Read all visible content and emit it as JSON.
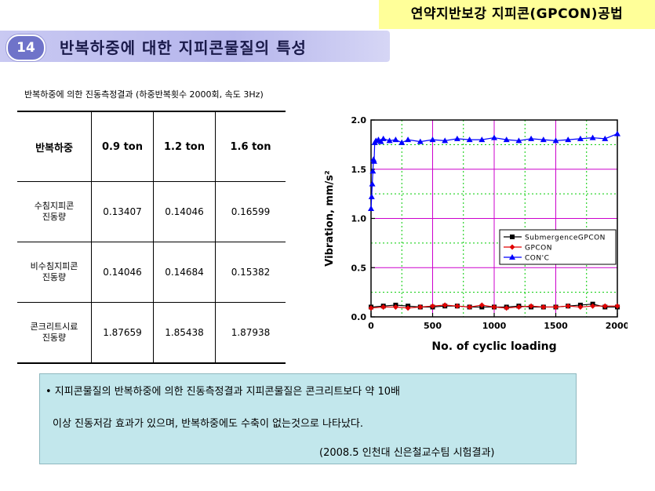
{
  "header": {
    "banner": "연약지반보강 지피콘(GPCON)공법"
  },
  "section": {
    "number": "14",
    "title": "반복하중에 대한 지피콘물질의 특성"
  },
  "caption": "반복하중에 의한 진동측정결과 (하중반복횟수 2000회, 속도 3Hz)",
  "table": {
    "headers": [
      "반복하중",
      "0.9 ton",
      "1.2 ton",
      "1.6 ton"
    ],
    "rows": [
      {
        "label1": "수침지피콘",
        "label2": "진동량",
        "values": [
          "0.13407",
          "0.14046",
          "0.16599"
        ]
      },
      {
        "label1": "비수침지피콘",
        "label2": "진동량",
        "values": [
          "0.14046",
          "0.14684",
          "0.15382"
        ]
      },
      {
        "label1": "콘크리트시료",
        "label2": "진동량",
        "values": [
          "1.87659",
          "1.85438",
          "1.87938"
        ]
      }
    ]
  },
  "chart_data": {
    "type": "line",
    "xlabel": "No. of cyclic loading",
    "ylabel": "Vibration, mm/s²",
    "xlim": [
      0,
      2000
    ],
    "ylim": [
      0,
      2.0
    ],
    "xticks": [
      "0",
      "500",
      "1000",
      "1500",
      "2000"
    ],
    "yticks": [
      "0.0",
      "0.5",
      "1.0",
      "1.5",
      "2.0"
    ],
    "grid": true,
    "legend_position": "right",
    "series": [
      {
        "name": "SubmergenceGPCON",
        "color": "#000000",
        "marker": "square",
        "x": [
          0,
          100,
          200,
          300,
          400,
          500,
          600,
          700,
          800,
          900,
          1000,
          1100,
          1200,
          1300,
          1400,
          1500,
          1600,
          1700,
          1800,
          1900,
          2000
        ],
        "values": [
          0.1,
          0.11,
          0.12,
          0.11,
          0.1,
          0.1,
          0.11,
          0.11,
          0.1,
          0.1,
          0.1,
          0.1,
          0.11,
          0.1,
          0.1,
          0.1,
          0.11,
          0.12,
          0.13,
          0.1,
          0.1
        ]
      },
      {
        "name": "GPCON",
        "color": "#e00000",
        "marker": "diamond",
        "x": [
          0,
          100,
          200,
          300,
          400,
          500,
          600,
          700,
          800,
          900,
          1000,
          1100,
          1200,
          1300,
          1400,
          1500,
          1600,
          1700,
          1800,
          1900,
          2000
        ],
        "values": [
          0.09,
          0.1,
          0.1,
          0.09,
          0.1,
          0.11,
          0.12,
          0.11,
          0.1,
          0.12,
          0.1,
          0.09,
          0.1,
          0.11,
          0.1,
          0.1,
          0.11,
          0.1,
          0.11,
          0.11,
          0.11
        ]
      },
      {
        "name": "CON'C",
        "color": "#0000ff",
        "marker": "triangle",
        "x": [
          0,
          5,
          10,
          15,
          20,
          25,
          30,
          40,
          60,
          80,
          100,
          150,
          200,
          250,
          300,
          400,
          500,
          600,
          700,
          800,
          900,
          1000,
          1100,
          1200,
          1300,
          1400,
          1500,
          1600,
          1700,
          1800,
          1900,
          2000
        ],
        "values": [
          1.1,
          1.22,
          1.35,
          1.48,
          1.6,
          1.58,
          1.77,
          1.79,
          1.8,
          1.78,
          1.81,
          1.79,
          1.8,
          1.77,
          1.8,
          1.78,
          1.8,
          1.79,
          1.81,
          1.8,
          1.8,
          1.82,
          1.8,
          1.79,
          1.81,
          1.8,
          1.79,
          1.8,
          1.81,
          1.82,
          1.81,
          1.86
        ]
      }
    ]
  },
  "note": {
    "line1": "• 지피콘물질의 반복하중에 의한 진동측정결과 지피콘물질은 콘크리트보다 약 10배",
    "line2": "이상 진동저감 효과가 있으며, 반복하중에도 수축이 없는것으로 나타났다.",
    "line3": "(2008.5 인천대 신은철교수팀 시험결과)"
  }
}
